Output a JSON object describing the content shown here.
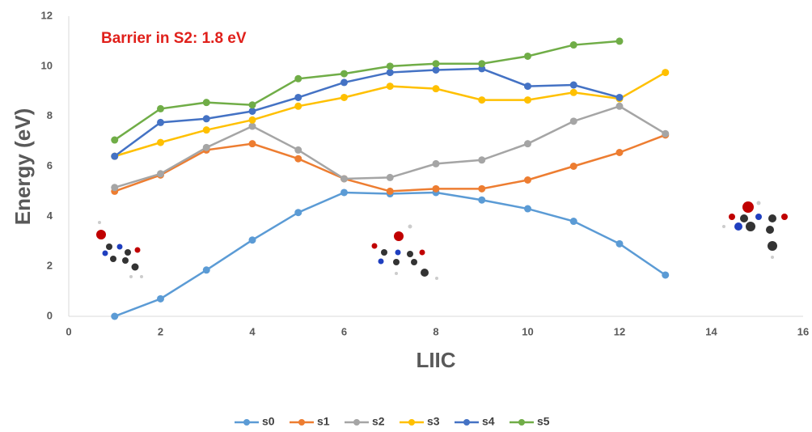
{
  "chart_data": {
    "type": "line",
    "annotation": "Barrier in S2: 1.8 eV",
    "x_label": "LIIC",
    "y_label": "Energy (eV)",
    "x": [
      1,
      2,
      3,
      4,
      5,
      6,
      7,
      8,
      9,
      10,
      11,
      12,
      13
    ],
    "series": [
      {
        "name": "s0",
        "color": "#5b9bd5",
        "values": [
          0,
          0.7,
          1.85,
          3.05,
          4.15,
          4.95,
          4.9,
          4.95,
          4.65,
          4.3,
          3.8,
          2.9,
          1.65
        ]
      },
      {
        "name": "s1",
        "color": "#ed7d31",
        "values": [
          5.0,
          5.65,
          6.65,
          6.9,
          6.3,
          5.5,
          5.0,
          5.1,
          5.1,
          5.45,
          6.0,
          6.55,
          7.25
        ]
      },
      {
        "name": "s2",
        "color": "#a5a5a5",
        "values": [
          5.15,
          5.7,
          6.75,
          7.6,
          6.65,
          5.5,
          5.55,
          6.1,
          6.25,
          6.9,
          7.8,
          8.4,
          7.3
        ]
      },
      {
        "name": "s3",
        "color": "#ffc000",
        "values": [
          6.4,
          6.95,
          7.45,
          7.85,
          8.4,
          8.75,
          9.2,
          9.1,
          8.65,
          8.65,
          8.95,
          8.7,
          9.75
        ]
      },
      {
        "name": "s4",
        "color": "#4472c4",
        "values": [
          6.4,
          7.75,
          7.9,
          8.2,
          8.75,
          9.35,
          9.75,
          9.85,
          9.9,
          9.2,
          9.25,
          8.75,
          null
        ]
      },
      {
        "name": "s5",
        "color": "#70ad47",
        "values": [
          7.05,
          8.3,
          8.55,
          8.45,
          9.5,
          9.7,
          10.0,
          10.1,
          10.1,
          10.4,
          10.85,
          11.0,
          null
        ]
      }
    ],
    "xlim": [
      0,
      16
    ],
    "xticks": [
      0,
      2,
      4,
      6,
      8,
      10,
      12,
      14,
      16
    ],
    "ylim": [
      0,
      12
    ],
    "yticks": [
      0,
      2,
      4,
      6,
      8,
      10,
      12
    ],
    "grid": false,
    "legend": "bottom"
  }
}
